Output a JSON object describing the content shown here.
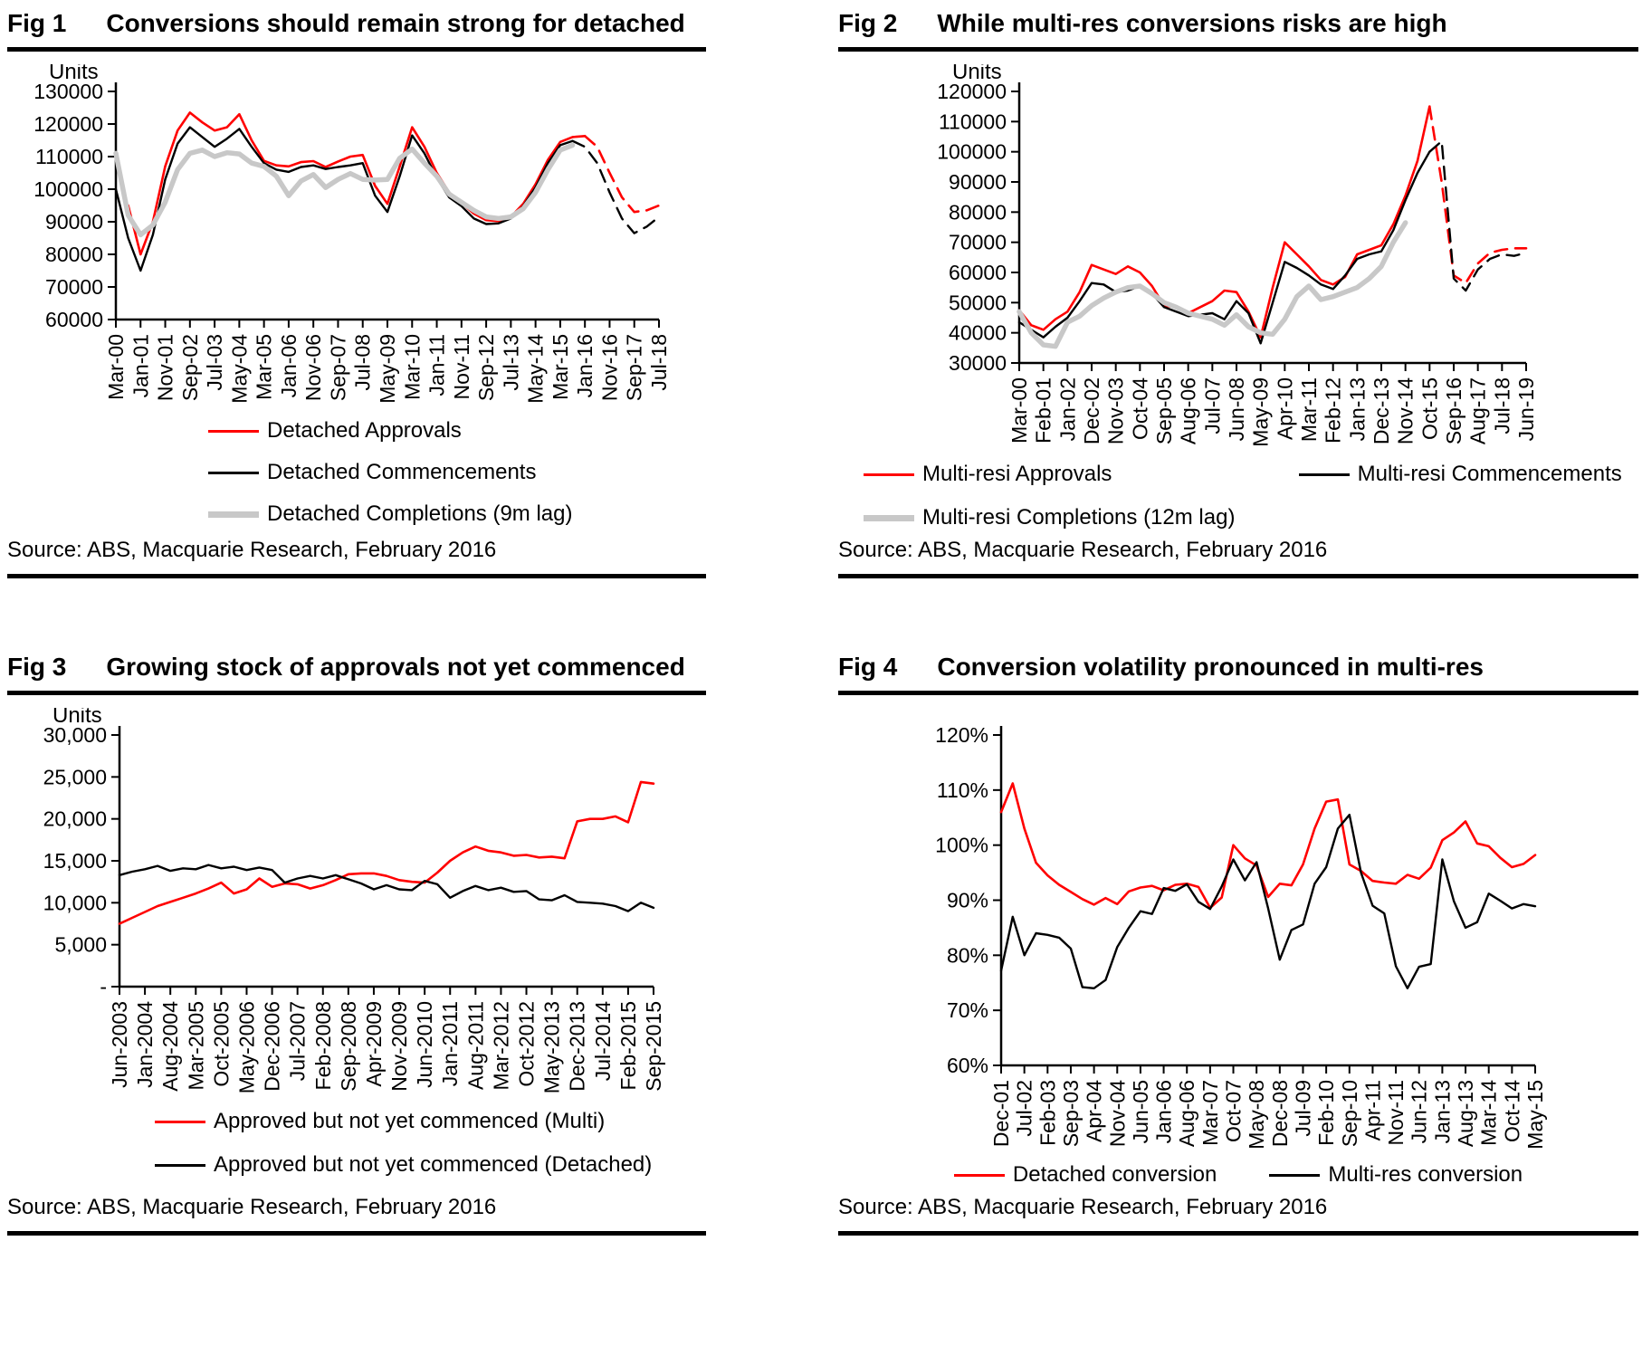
{
  "figures": [
    {
      "fig_label": "Fig 1",
      "title": "Conversions should remain strong for detached",
      "source": "Source: ABS, Macquarie Research, February 2016",
      "legend": {
        "layout": "column",
        "items": [
          {
            "label": "Detached Approvals",
            "color": "#ff0000",
            "thick": false
          },
          {
            "label": "Detached Commencements",
            "color": "#000000",
            "thick": false
          },
          {
            "label": "Detached Completions (9m lag)",
            "color": "#c8c8c8",
            "thick": true
          }
        ]
      }
    },
    {
      "fig_label": "Fig 2",
      "title": "While multi-res conversions risks are high",
      "source": "Source: ABS, Macquarie Research, February 2016",
      "legend": {
        "layout": "grid2",
        "items": [
          {
            "label": "Multi-resi Approvals",
            "color": "#ff0000",
            "thick": false
          },
          {
            "label": "Multi-resi Commencements",
            "color": "#000000",
            "thick": false
          },
          {
            "label": "Multi-resi Completions (12m lag)",
            "color": "#c8c8c8",
            "thick": true
          }
        ]
      }
    },
    {
      "fig_label": "Fig 3",
      "title": "Growing stock of approvals not yet commenced",
      "source": "Source: ABS, Macquarie Research, February 2016",
      "legend": {
        "layout": "column",
        "items": [
          {
            "label": "Approved but not yet commenced (Multi)",
            "color": "#ff0000",
            "thick": false
          },
          {
            "label": "Approved but not yet commenced (Detached)",
            "color": "#000000",
            "thick": false
          }
        ]
      }
    },
    {
      "fig_label": "Fig 4",
      "title": "Conversion volatility pronounced in multi-res",
      "source": "Source: ABS, Macquarie Research, February 2016",
      "legend": {
        "layout": "row",
        "items": [
          {
            "label": "Detached conversion",
            "color": "#ff0000",
            "thick": false
          },
          {
            "label": "Multi-res conversion",
            "color": "#000000",
            "thick": false
          }
        ]
      }
    }
  ],
  "chart_data": [
    {
      "type": "line",
      "title": "Conversions should remain strong for detached",
      "ylabel": "Units",
      "ylim": [
        60000,
        130000
      ],
      "ytick_labels": [
        "130000",
        "120000",
        "110000",
        "100000",
        "90000",
        "80000",
        "70000",
        "60000"
      ],
      "x_labels": [
        "Mar-00",
        "Jan-01",
        "Nov-01",
        "Sep-02",
        "Jul-03",
        "May-04",
        "Mar-05",
        "Jan-06",
        "Nov-06",
        "Sep-07",
        "Jul-08",
        "May-09",
        "Mar-10",
        "Jan-11",
        "Nov-11",
        "Sep-12",
        "Jul-13",
        "May-14",
        "Mar-15",
        "Jan-16",
        "Nov-16",
        "Sep-17",
        "Jul-18"
      ],
      "x_label_step": 2,
      "n_points": 45,
      "grid": false,
      "legend_position": "below",
      "series": [
        {
          "name": "Detached Approvals",
          "color": "#ff0000",
          "width": 2.6,
          "dash_from": 38,
          "values": [
            null,
            95000,
            80000,
            90000,
            107000,
            118000,
            123500,
            120500,
            118000,
            119000,
            123000,
            115000,
            108700,
            107300,
            107000,
            108300,
            108600,
            106800,
            108500,
            110000,
            110500,
            101000,
            95500,
            107000,
            119000,
            113000,
            105000,
            99000,
            95800,
            92500,
            90500,
            90200,
            91500,
            95500,
            101500,
            109000,
            114500,
            116000,
            116300,
            113000,
            105000,
            97500,
            93000,
            93500,
            95000
          ]
        },
        {
          "name": "Detached Commencements",
          "color": "#000000",
          "width": 2.4,
          "dash_from": 37,
          "values": [
            100000,
            85000,
            75000,
            86000,
            103000,
            114000,
            119000,
            116000,
            113000,
            115500,
            118500,
            113000,
            108000,
            106000,
            105300,
            106800,
            107300,
            106200,
            106800,
            107300,
            108000,
            98000,
            93000,
            104000,
            116500,
            111000,
            103500,
            97500,
            94800,
            91000,
            89300,
            89500,
            91000,
            94800,
            100500,
            108000,
            113500,
            114800,
            113000,
            108000,
            99000,
            91000,
            86500,
            88500,
            91500
          ]
        },
        {
          "name": "Detached Completions (9m lag)",
          "color": "#c8c8c8",
          "width": 5.5,
          "values": [
            111000,
            92000,
            86000,
            89000,
            96000,
            106000,
            111000,
            112000,
            110000,
            111200,
            110800,
            108000,
            107000,
            104000,
            98000,
            102500,
            104500,
            100500,
            103000,
            104800,
            103000,
            102800,
            103000,
            109500,
            112300,
            108000,
            104000,
            98500,
            96000,
            93500,
            91500,
            91000,
            91500,
            94000,
            99000,
            106000,
            112000,
            113500,
            null,
            null,
            null,
            null,
            null,
            null,
            null
          ]
        }
      ]
    },
    {
      "type": "line",
      "title": "While multi-res conversions risks are high",
      "ylabel": "Units",
      "ylim": [
        30000,
        120000
      ],
      "ytick_labels": [
        "120000",
        "110000",
        "100000",
        "90000",
        "80000",
        "70000",
        "60000",
        "50000",
        "40000",
        "30000"
      ],
      "x_labels": [
        "Mar-00",
        "Feb-01",
        "Jan-02",
        "Dec-02",
        "Nov-03",
        "Oct-04",
        "Sep-05",
        "Aug-06",
        "Jul-07",
        "Jun-08",
        "May-09",
        "Apr-10",
        "Mar-11",
        "Feb-12",
        "Jan-13",
        "Dec-13",
        "Nov-14",
        "Oct-15",
        "Sep-16",
        "Aug-17",
        "Jul-18",
        "Jun-19"
      ],
      "x_label_step": 2,
      "n_points": 43,
      "grid": false,
      "legend_position": "below",
      "series": [
        {
          "name": "Multi-resi Approvals",
          "color": "#ff0000",
          "width": 2.6,
          "dash_from": 34,
          "values": [
            47500,
            42500,
            41000,
            44500,
            47000,
            53500,
            62500,
            61000,
            59500,
            62000,
            60000,
            55500,
            49000,
            48500,
            46500,
            48500,
            50500,
            54000,
            53500,
            47000,
            38500,
            55000,
            70000,
            66000,
            62000,
            57500,
            56000,
            58500,
            66000,
            67500,
            69000,
            76000,
            85500,
            97000,
            115000,
            90000,
            59000,
            56500,
            63000,
            66500,
            67500,
            68000,
            68000
          ]
        },
        {
          "name": "Multi-resi Commencements",
          "color": "#000000",
          "width": 2.4,
          "dash_from": 34,
          "values": [
            43500,
            41000,
            38500,
            42000,
            45000,
            50500,
            56500,
            56000,
            53500,
            54000,
            55500,
            53000,
            48500,
            47000,
            45500,
            46000,
            46500,
            44500,
            50500,
            46500,
            36500,
            50000,
            63500,
            61500,
            59000,
            56000,
            54500,
            59000,
            64500,
            66000,
            67000,
            74000,
            84000,
            93000,
            100000,
            103500,
            58000,
            54000,
            61000,
            64500,
            66000,
            65500,
            66500
          ]
        },
        {
          "name": "Multi-resi Completions (12m lag)",
          "color": "#c8c8c8",
          "width": 5.5,
          "values": [
            47000,
            40000,
            36000,
            35500,
            43500,
            45500,
            49000,
            51500,
            53500,
            55000,
            55500,
            53000,
            50000,
            48500,
            46500,
            45500,
            44500,
            42500,
            46000,
            42000,
            40000,
            39500,
            44500,
            52000,
            55500,
            51000,
            52000,
            53500,
            55000,
            58000,
            62000,
            70000,
            76500,
            null,
            null,
            null,
            null,
            null,
            null,
            null,
            null,
            null,
            null
          ]
        }
      ]
    },
    {
      "type": "line",
      "title": "Growing stock of approvals not yet commenced",
      "ylabel": "Units",
      "ylim": [
        0,
        30000
      ],
      "ytick_labels": [
        "30,000",
        "25,000",
        "20,000",
        "15,000",
        "10,000",
        "5,000",
        "-"
      ],
      "x_labels": [
        "Jun-2003",
        "Jan-2004",
        "Aug-2004",
        "Mar-2005",
        "Oct-2005",
        "May-2006",
        "Dec-2006",
        "Jul-2007",
        "Feb-2008",
        "Sep-2008",
        "Apr-2009",
        "Nov-2009",
        "Jun-2010",
        "Jan-2011",
        "Aug-2011",
        "Mar-2012",
        "Oct-2012",
        "May-2013",
        "Dec-2013",
        "Jul-2014",
        "Feb-2015",
        "Sep-2015"
      ],
      "x_label_step": 2,
      "n_points": 43,
      "grid": false,
      "legend_position": "below",
      "series": [
        {
          "name": "Approved but not yet commenced (Multi)",
          "color": "#ff0000",
          "width": 2.6,
          "values": [
            7500,
            8200,
            8900,
            9600,
            10100,
            10600,
            11100,
            11700,
            12400,
            11100,
            11600,
            12900,
            11900,
            12300,
            12200,
            11700,
            12100,
            12700,
            13400,
            13500,
            13500,
            13200,
            12700,
            12500,
            12400,
            13600,
            15000,
            16000,
            16700,
            16200,
            16000,
            15600,
            15700,
            15400,
            15500,
            15300,
            19700,
            20000,
            20000,
            20300,
            19600,
            24400,
            24200
          ]
        },
        {
          "name": "Approved but not yet commenced (Detached)",
          "color": "#000000",
          "width": 2.4,
          "values": [
            13300,
            13700,
            14000,
            14400,
            13800,
            14100,
            14000,
            14500,
            14100,
            14300,
            13900,
            14200,
            13900,
            12400,
            12900,
            13200,
            12900,
            13300,
            12800,
            12300,
            11600,
            12100,
            11600,
            11500,
            12600,
            12200,
            10600,
            11400,
            12000,
            11500,
            11800,
            11300,
            11400,
            10400,
            10300,
            10900,
            10100,
            10000,
            9900,
            9600,
            9000,
            10000,
            9400
          ]
        }
      ]
    },
    {
      "type": "line",
      "title": "Conversion volatility pronounced in multi-res",
      "ylabel": "",
      "ylim": [
        60,
        120
      ],
      "ytick_labels": [
        "120%",
        "110%",
        "100%",
        "90%",
        "80%",
        "70%",
        "60%"
      ],
      "x_labels": [
        "Dec-01",
        "Jul-02",
        "Feb-03",
        "Sep-03",
        "Apr-04",
        "Nov-04",
        "Jun-05",
        "Jan-06",
        "Aug-06",
        "Mar-07",
        "Oct-07",
        "May-08",
        "Dec-08",
        "Jul-09",
        "Feb-10",
        "Sep-10",
        "Apr-11",
        "Nov-11",
        "Jun-12",
        "Jan-13",
        "Aug-13",
        "Mar-14",
        "Oct-14",
        "May-15"
      ],
      "x_label_step": 2,
      "n_points": 47,
      "grid": false,
      "legend_position": "below",
      "series": [
        {
          "name": "Detached conversion",
          "color": "#ff0000",
          "width": 2.6,
          "values": [
            106,
            111.2,
            103,
            96.8,
            94.5,
            92.8,
            91.5,
            90.2,
            89.2,
            90.4,
            89.3,
            91.6,
            92.3,
            92.6,
            91.8,
            92.8,
            93,
            92.4,
            88.6,
            90.5,
            100,
            97.6,
            96.3,
            90.6,
            93,
            92.7,
            96.5,
            103,
            107.9,
            108.3,
            96.5,
            95.3,
            93.5,
            93.2,
            93,
            94.6,
            93.9,
            95.9,
            100.9,
            102.3,
            104.3,
            100.3,
            99.8,
            97.7,
            96,
            96.6,
            98.2
          ]
        },
        {
          "name": "Multi-res conversion",
          "color": "#000000",
          "width": 2.4,
          "values": [
            77.2,
            87,
            80,
            84,
            83.7,
            83.2,
            81.2,
            74.2,
            74,
            75.5,
            81.5,
            85,
            88,
            87.5,
            92.2,
            91.7,
            92.9,
            89.7,
            88.4,
            92.5,
            97.4,
            93.6,
            96.9,
            88.5,
            79.2,
            84.6,
            85.6,
            93,
            96,
            103,
            105.5,
            95,
            89,
            87.6,
            78,
            74,
            77.9,
            78.4,
            97.4,
            89.8,
            85,
            86,
            91.2,
            89.9,
            88.5,
            89.3,
            88.9
          ]
        }
      ]
    }
  ]
}
